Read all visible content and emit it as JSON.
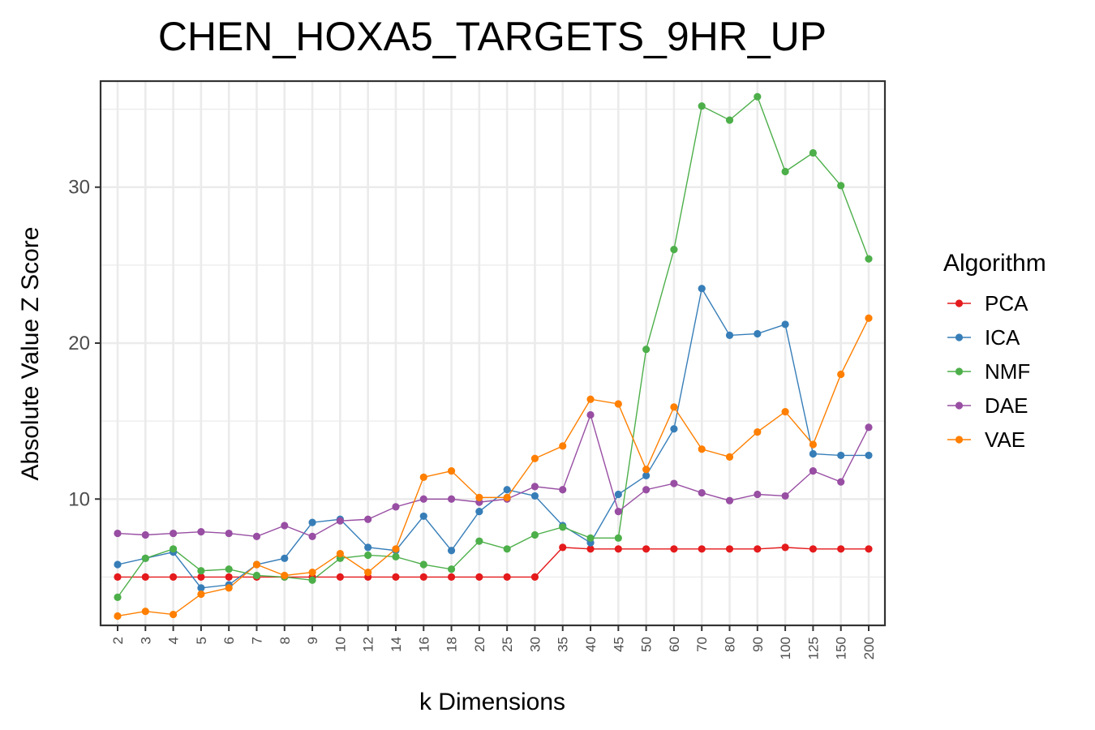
{
  "chart_data": {
    "type": "line",
    "title": "CHEN_HOXA5_TARGETS_9HR_UP",
    "xlabel": "k Dimensions",
    "ylabel": "Absolute Value Z Score",
    "categories": [
      "2",
      "3",
      "4",
      "5",
      "6",
      "7",
      "8",
      "9",
      "10",
      "12",
      "14",
      "16",
      "18",
      "20",
      "25",
      "30",
      "35",
      "40",
      "45",
      "50",
      "60",
      "70",
      "80",
      "90",
      "100",
      "125",
      "150",
      "200"
    ],
    "ylim": [
      1.9,
      36.8
    ],
    "y_major_ticks": [
      10,
      20,
      30
    ],
    "y_minor_ticks": [
      5,
      15,
      25,
      35
    ],
    "grid": true,
    "legend": {
      "title": "Algorithm",
      "position": "right"
    },
    "series": [
      {
        "name": "PCA",
        "color": "#e41a1c",
        "values": [
          5.0,
          5.0,
          5.0,
          5.0,
          5.0,
          5.0,
          5.0,
          5.0,
          5.0,
          5.0,
          5.0,
          5.0,
          5.0,
          5.0,
          5.0,
          5.0,
          6.9,
          6.8,
          6.8,
          6.8,
          6.8,
          6.8,
          6.8,
          6.8,
          6.9,
          6.8,
          6.8,
          6.8
        ]
      },
      {
        "name": "ICA",
        "color": "#377eb8",
        "values": [
          5.8,
          6.2,
          6.6,
          4.3,
          4.5,
          5.8,
          6.2,
          8.5,
          8.7,
          6.9,
          6.7,
          8.9,
          6.7,
          9.2,
          10.6,
          10.2,
          8.3,
          7.2,
          10.3,
          11.5,
          14.5,
          23.5,
          20.5,
          20.6,
          21.2,
          12.9,
          12.8,
          12.8
        ]
      },
      {
        "name": "NMF",
        "color": "#4daf4a",
        "values": [
          3.7,
          6.2,
          6.8,
          5.4,
          5.5,
          5.1,
          5.0,
          4.8,
          6.2,
          6.4,
          6.3,
          5.8,
          5.5,
          7.3,
          6.8,
          7.7,
          8.2,
          7.5,
          7.5,
          19.6,
          26.0,
          35.2,
          34.3,
          35.8,
          31.0,
          32.2,
          30.1,
          25.4
        ]
      },
      {
        "name": "DAE",
        "color": "#984ea3",
        "values": [
          7.8,
          7.7,
          7.8,
          7.9,
          7.8,
          7.6,
          8.3,
          7.6,
          8.6,
          8.7,
          9.5,
          10.0,
          10.0,
          9.8,
          10.0,
          10.8,
          10.6,
          15.4,
          9.2,
          10.6,
          11.0,
          10.4,
          9.9,
          10.3,
          10.2,
          11.8,
          11.1,
          14.6
        ]
      },
      {
        "name": "VAE",
        "color": "#ff7f00",
        "values": [
          2.5,
          2.8,
          2.6,
          3.9,
          4.3,
          5.8,
          5.1,
          5.3,
          6.5,
          5.3,
          6.8,
          11.4,
          11.8,
          10.1,
          10.1,
          12.6,
          13.4,
          16.4,
          16.1,
          11.9,
          15.9,
          13.2,
          12.7,
          14.3,
          15.6,
          13.5,
          18.0,
          21.6
        ]
      }
    ]
  }
}
